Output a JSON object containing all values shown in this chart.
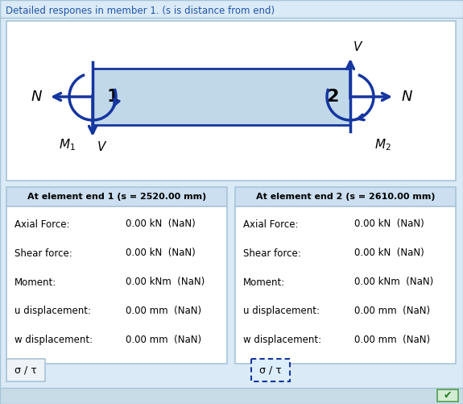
{
  "title": "Detailed respones in member 1. (s is distance from end)",
  "bg_outer": "#daeaf6",
  "bg_white": "#ffffff",
  "border_color": "#a8c4d8",
  "arrow_color": "#1535a0",
  "beam_face": "#c0d8e8",
  "beam_edge": "#1535a0",
  "end1_header": "At element end 1 (s = 2520.00 mm)",
  "end2_header": "At element end 2 (s = 2610.00 mm)",
  "rows": [
    [
      "Axial Force:",
      "0.00 kN  (NaN)",
      "Axial Force:",
      "0.00 kN  (NaN)"
    ],
    [
      "Shear force:",
      "0.00 kN  (NaN)",
      "Shear force:",
      "0.00 kN  (NaN)"
    ],
    [
      "Moment:",
      "0.00 kNm  (NaN)",
      "Moment:",
      "0.00 kNm  (NaN)"
    ],
    [
      "u displacement:",
      "0.00 mm  (NaN)",
      "u displacement:",
      "0.00 mm  (NaN)"
    ],
    [
      "w displacement:",
      "0.00 mm  (NaN)",
      "w displacement:",
      "0.00 mm  (NaN)"
    ]
  ],
  "btn_label": "σ / τ",
  "checkmark": "✔",
  "header_bg": "#ccdff0",
  "panel_bg": "#ffffff",
  "bottom_bg": "#c8dce8"
}
